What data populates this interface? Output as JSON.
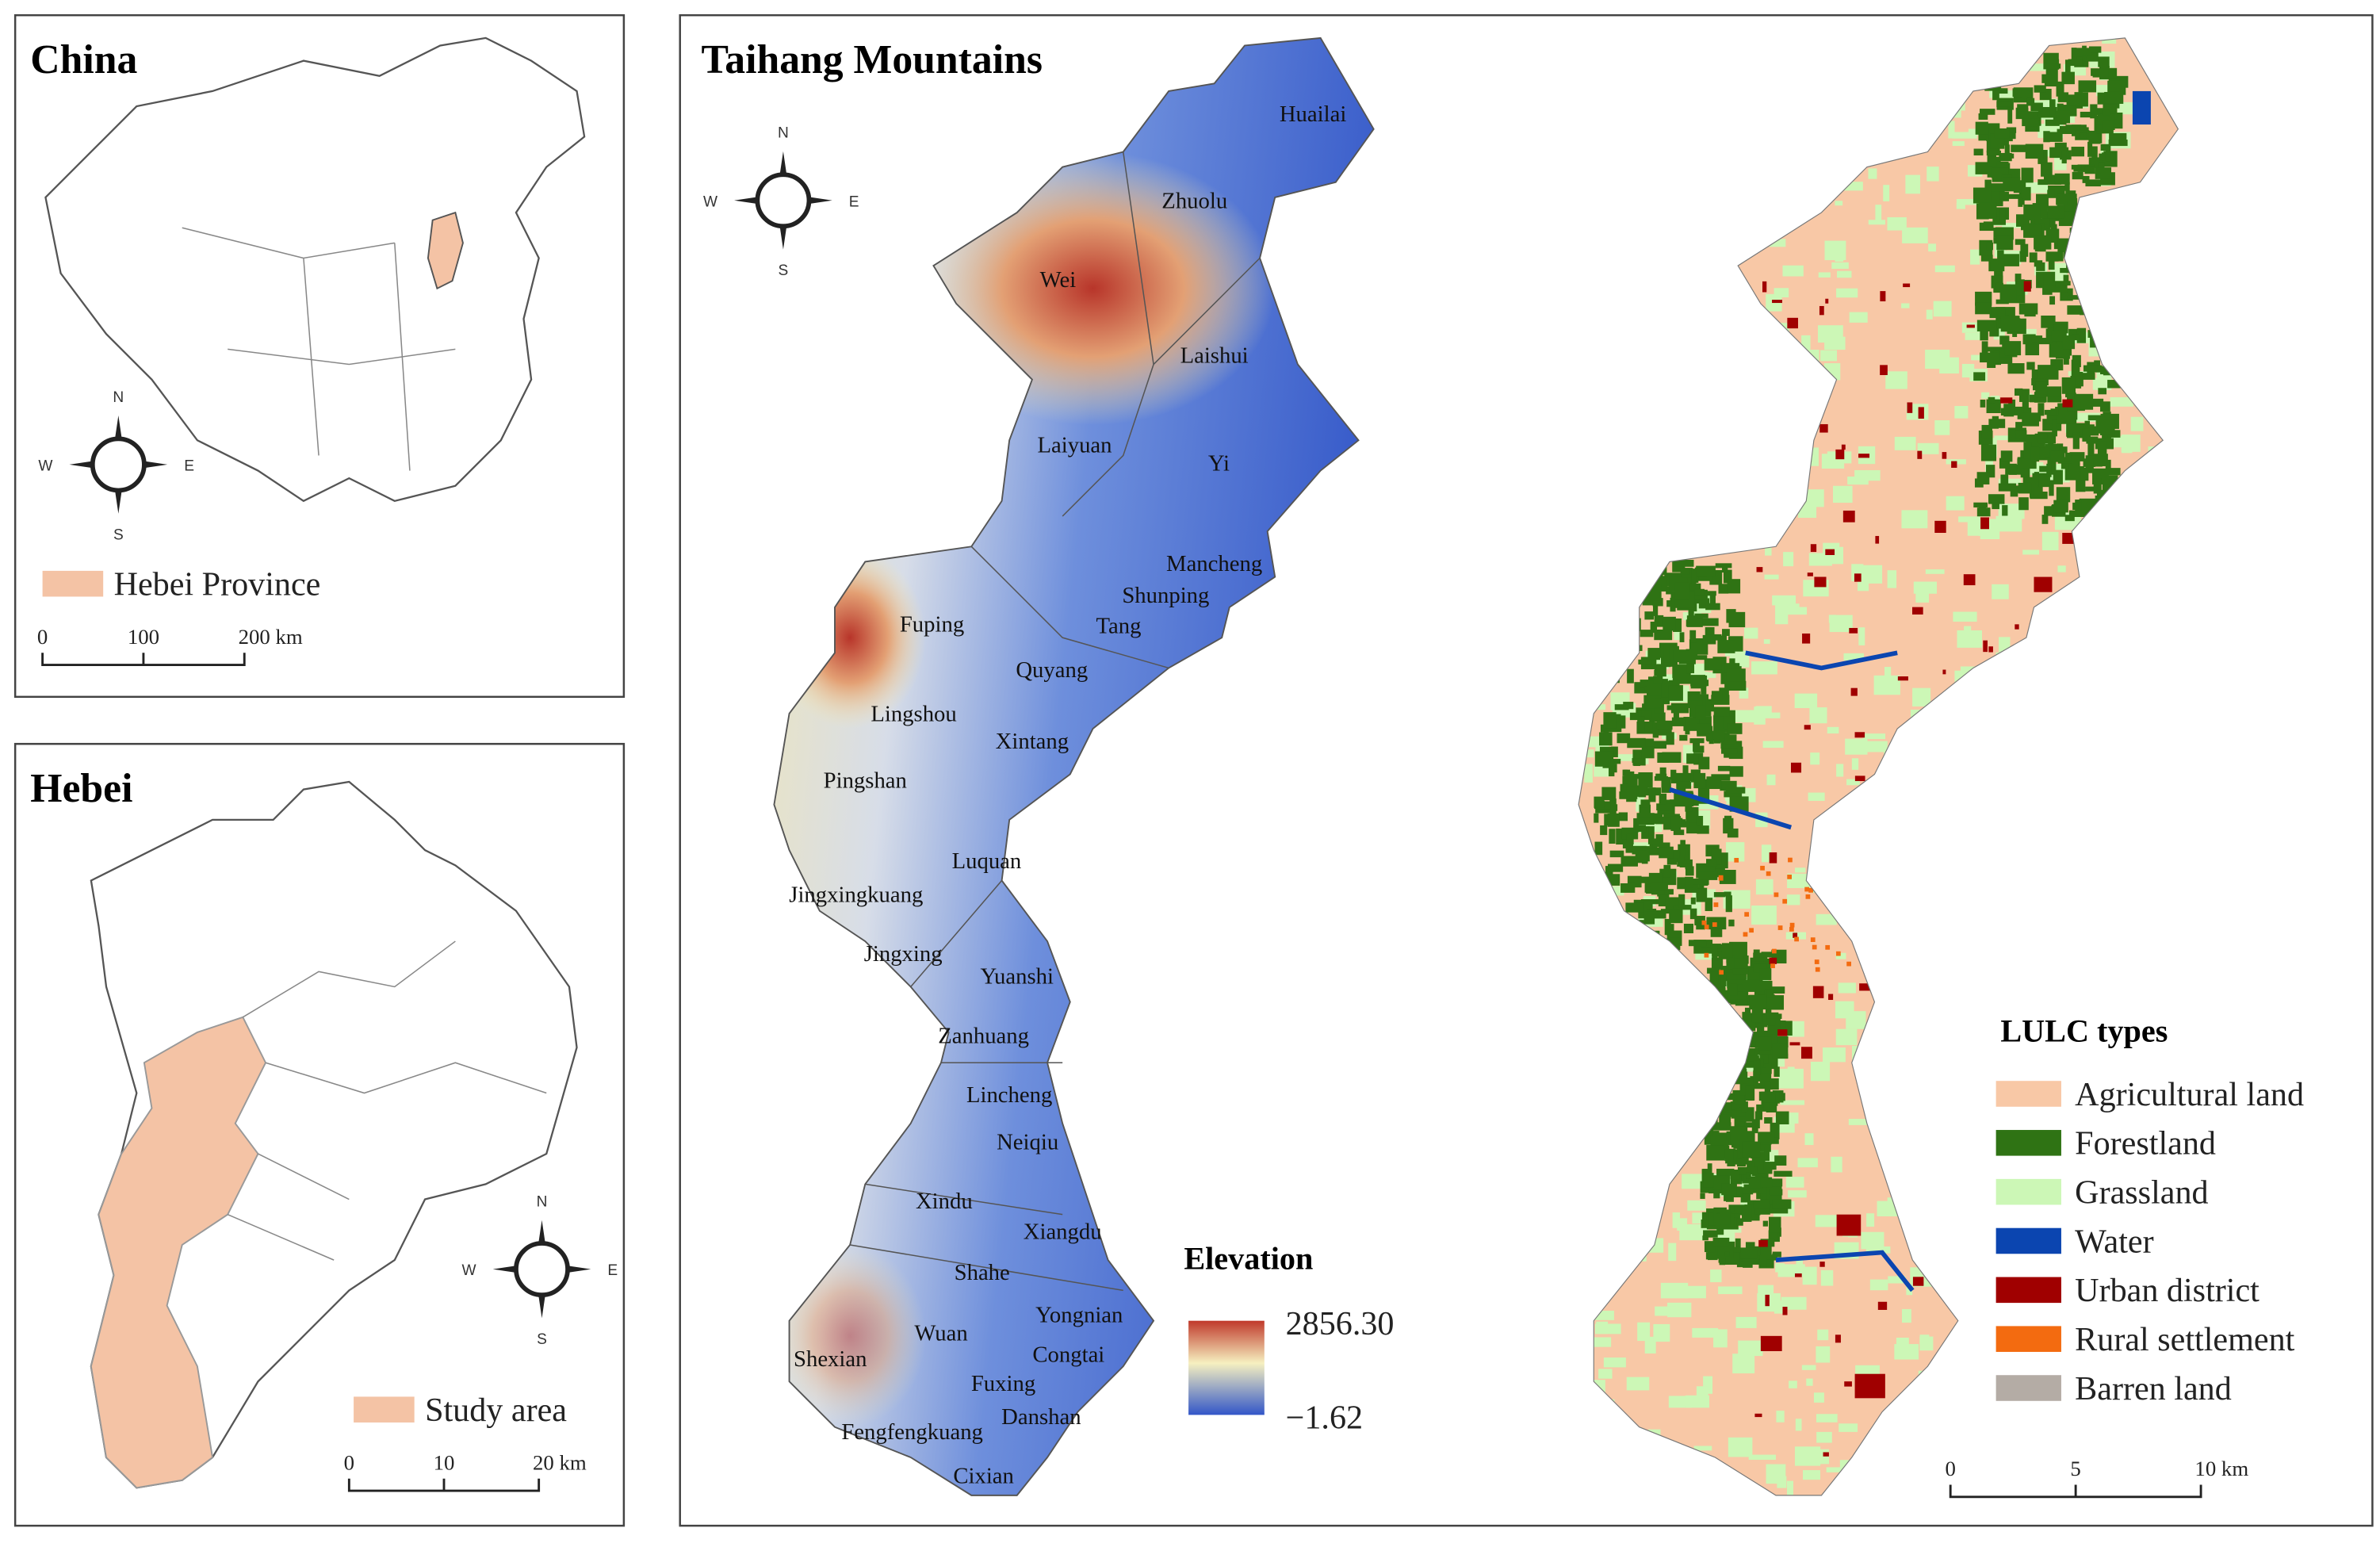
{
  "china": {
    "title": "China",
    "legend": "Hebei Province",
    "scale": [
      "0",
      "100",
      "200 km"
    ],
    "compass": {
      "n": "N",
      "s": "S",
      "w": "W",
      "e": "E"
    }
  },
  "hebei": {
    "title": "Hebei",
    "legend": "Study area",
    "scale": [
      "0",
      "10",
      "20 km"
    ],
    "compass": {
      "n": "N",
      "s": "S",
      "w": "W",
      "e": "E"
    }
  },
  "taihang": {
    "title": "Taihang Mountains",
    "compass": {
      "n": "N",
      "s": "S",
      "w": "W",
      "e": "E"
    },
    "counties": [
      "Huailai",
      "Zhuolu",
      "Wei",
      "Laishui",
      "Laiyuan",
      "Yi",
      "Mancheng",
      "Shunping",
      "Tang",
      "Fuping",
      "Quyang",
      "Lingshou",
      "Xintang",
      "Pingshan",
      "Luquan",
      "Jingxingkuang",
      "Jingxing",
      "Yuanshi",
      "Zanhuang",
      "Lincheng",
      "Neiqiu",
      "Xindu",
      "Xiangdu",
      "Shahe",
      "Yongnian",
      "Wuan",
      "Congtai",
      "Shexian",
      "Fuxing",
      "Danshan",
      "Fengfengkuang",
      "Cixian"
    ],
    "elevation": {
      "title": "Elevation",
      "max": "2856.30",
      "min": "−1.62"
    }
  },
  "lulc": {
    "title": "LULC types",
    "scale": [
      "0",
      "5",
      "10 km"
    ],
    "classes": [
      {
        "label": "Agricultural land",
        "color": "#f8c8a6"
      },
      {
        "label": "Forestland",
        "color": "#2f7314"
      },
      {
        "label": "Grassland",
        "color": "#ccf7b6"
      },
      {
        "label": "Water",
        "color": "#0b45b0"
      },
      {
        "label": "Urban district",
        "color": "#a00000"
      },
      {
        "label": "Rural settlement",
        "color": "#f36b10"
      },
      {
        "label": "Barren land",
        "color": "#b4aca5"
      }
    ]
  }
}
